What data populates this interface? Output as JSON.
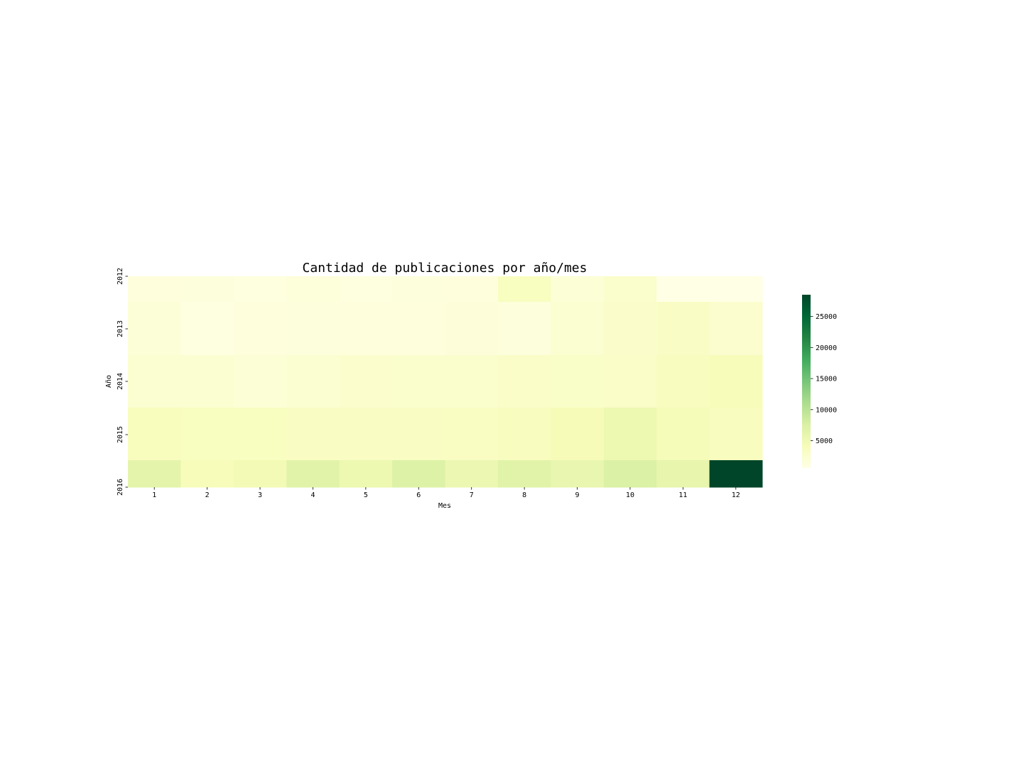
{
  "chart_data": {
    "type": "heatmap",
    "title": "Cantidad de publicaciones por año/mes",
    "xlabel": "Mes",
    "ylabel": "Año",
    "x_categories": [
      "1",
      "2",
      "3",
      "4",
      "5",
      "6",
      "7",
      "8",
      "9",
      "10",
      "11",
      "12"
    ],
    "y_categories": [
      "2012",
      "2013",
      "2014",
      "2015",
      "2016"
    ],
    "values": [
      [
        1200,
        1300,
        1150,
        1500,
        1150,
        1300,
        1200,
        3500,
        1800,
        2600,
        600,
        600
      ],
      [
        1700,
        1000,
        1250,
        1350,
        1250,
        1250,
        1550,
        1400,
        2300,
        2800,
        3100,
        2400
      ],
      [
        2300,
        2300,
        1900,
        2200,
        2500,
        2600,
        2600,
        2900,
        3000,
        2900,
        3600,
        3900
      ],
      [
        3800,
        3500,
        3500,
        3300,
        3200,
        3300,
        3400,
        3700,
        4200,
        5300,
        4300,
        3700
      ],
      [
        6300,
        3900,
        4700,
        6700,
        5300,
        7100,
        5400,
        6700,
        5700,
        7300,
        6000,
        28500
      ]
    ],
    "colormap": "YlGn",
    "colorbar": {
      "ticks": [
        5000,
        10000,
        15000,
        20000,
        25000
      ],
      "range": [
        600,
        28500
      ]
    }
  }
}
